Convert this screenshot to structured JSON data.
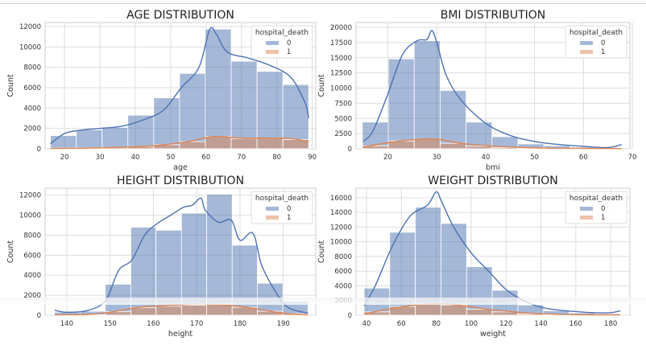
{
  "colors": {
    "survived": "#4c72b0",
    "died": "#dd8452",
    "grid": "#dddddd"
  },
  "chart_data": [
    {
      "type": "bar",
      "title": "AGE DISTRIBUTION",
      "xlabel": "age",
      "ylabel": "Count",
      "xlim": [
        14.5,
        91
      ],
      "ylim": [
        0,
        12400
      ],
      "xticks": [
        20,
        30,
        40,
        50,
        60,
        70,
        80,
        90
      ],
      "yticks": [
        0,
        2000,
        4000,
        6000,
        8000,
        10000,
        12000
      ],
      "legend_title": "hospital_death",
      "legend": [
        "0",
        "1"
      ],
      "bin_edges": [
        16,
        23.3,
        30.6,
        37.9,
        45.2,
        52.5,
        59.8,
        67.1,
        74.4,
        81.7,
        89
      ],
      "series": [
        {
          "name": "0",
          "values": [
            1300,
            1850,
            2100,
            3300,
            5000,
            7400,
            11750,
            8600,
            7600,
            6300
          ],
          "kde": [
            [
              16,
              500
            ],
            [
              20,
              1500
            ],
            [
              24,
              1800
            ],
            [
              30,
              2000
            ],
            [
              36,
              2200
            ],
            [
              42,
              2800
            ],
            [
              48,
              3800
            ],
            [
              53,
              6000
            ],
            [
              58,
              8000
            ],
            [
              61,
              11700
            ],
            [
              63,
              11200
            ],
            [
              66,
              9500
            ],
            [
              72,
              8900
            ],
            [
              78,
              8200
            ],
            [
              84,
              7000
            ],
            [
              88,
              4500
            ],
            [
              89,
              3000
            ]
          ]
        },
        {
          "name": "1",
          "values": [
            80,
            100,
            130,
            220,
            400,
            700,
            1200,
            1000,
            1050,
            900
          ],
          "kde": [
            [
              16,
              30
            ],
            [
              30,
              90
            ],
            [
              45,
              300
            ],
            [
              55,
              700
            ],
            [
              62,
              1200
            ],
            [
              70,
              1050
            ],
            [
              78,
              1050
            ],
            [
              84,
              1000
            ],
            [
              89,
              700
            ]
          ]
        }
      ]
    },
    {
      "type": "bar",
      "title": "BMI DISTRIBUTION",
      "xlabel": "bmi",
      "ylabel": "Count",
      "xlim": [
        13.5,
        69.5
      ],
      "ylim": [
        0,
        20800
      ],
      "xticks": [
        20,
        30,
        40,
        50,
        60,
        70
      ],
      "yticks": [
        0,
        2500,
        5000,
        7500,
        10000,
        12500,
        15000,
        17500,
        20000
      ],
      "legend_title": "hospital_death",
      "legend": [
        "0",
        "1"
      ],
      "bin_edges": [
        14.8,
        20.1,
        25.4,
        30.7,
        36.0,
        41.3,
        46.6,
        51.9,
        57.2,
        62.5,
        67.8
      ],
      "series": [
        {
          "name": "0",
          "values": [
            4400,
            14800,
            17800,
            9600,
            4400,
            2000,
            800,
            500,
            250,
            150
          ],
          "kde": [
            [
              15,
              1200
            ],
            [
              17,
              3000
            ],
            [
              20,
              9000
            ],
            [
              23,
              15500
            ],
            [
              26,
              17800
            ],
            [
              28,
              18000
            ],
            [
              29,
              19500
            ],
            [
              30,
              17500
            ],
            [
              32,
              12000
            ],
            [
              35,
              8000
            ],
            [
              40,
              4200
            ],
            [
              45,
              2200
            ],
            [
              50,
              1200
            ],
            [
              55,
              700
            ],
            [
              60,
              400
            ],
            [
              64,
              200
            ],
            [
              66,
              300
            ],
            [
              67.8,
              700
            ]
          ]
        },
        {
          "name": "1",
          "values": [
            500,
            1300,
            1600,
            900,
            420,
            200,
            90,
            50,
            30,
            20
          ],
          "kde": [
            [
              15,
              300
            ],
            [
              20,
              1000
            ],
            [
              25,
              1500
            ],
            [
              30,
              1600
            ],
            [
              35,
              900
            ],
            [
              42,
              420
            ],
            [
              50,
              150
            ],
            [
              60,
              60
            ],
            [
              67.8,
              40
            ]
          ]
        }
      ]
    },
    {
      "type": "bar",
      "title": "HEIGHT DISTRIBUTION",
      "xlabel": "height",
      "ylabel": "Count",
      "xlim": [
        135,
        197.5
      ],
      "ylim": [
        0,
        12700
      ],
      "xticks": [
        140,
        150,
        160,
        170,
        180,
        190
      ],
      "yticks": [
        0,
        2000,
        4000,
        6000,
        8000,
        10000,
        12000
      ],
      "legend_title": "hospital_death",
      "legend": [
        "0",
        "1"
      ],
      "bin_edges": [
        137.2,
        143.1,
        148.9,
        154.8,
        160.6,
        166.5,
        172.3,
        178.2,
        184.0,
        189.9,
        195.7
      ],
      "series": [
        {
          "name": "0",
          "values": [
            300,
            400,
            3100,
            8800,
            8500,
            10200,
            12100,
            7000,
            3200,
            1400
          ],
          "kde": [
            [
              137.2,
              500
            ],
            [
              140,
              300
            ],
            [
              145,
              500
            ],
            [
              149,
              1500
            ],
            [
              152,
              4500
            ],
            [
              155,
              5500
            ],
            [
              158,
              8000
            ],
            [
              161,
              9200
            ],
            [
              164,
              10000
            ],
            [
              167,
              10800
            ],
            [
              169,
              11000
            ],
            [
              171,
              11700
            ],
            [
              172,
              10500
            ],
            [
              175,
              9300
            ],
            [
              178,
              9500
            ],
            [
              180,
              7500
            ],
            [
              183,
              8200
            ],
            [
              185,
              5000
            ],
            [
              188,
              2500
            ],
            [
              191,
              800
            ],
            [
              195.7,
              200
            ]
          ]
        },
        {
          "name": "1",
          "values": [
            30,
            50,
            350,
            750,
            900,
            1000,
            1100,
            800,
            400,
            150
          ],
          "kde": [
            [
              137.2,
              40
            ],
            [
              145,
              80
            ],
            [
              150,
              300
            ],
            [
              157,
              800
            ],
            [
              165,
              1000
            ],
            [
              170,
              1100
            ],
            [
              177,
              1000
            ],
            [
              183,
              700
            ],
            [
              190,
              200
            ],
            [
              195.7,
              40
            ]
          ]
        }
      ]
    },
    {
      "type": "bar",
      "title": "WEIGHT DISTRIBUTION",
      "xlabel": "weight",
      "ylabel": "Count",
      "xlim": [
        34,
        191
      ],
      "ylim": [
        0,
        17300
      ],
      "xticks": [
        40,
        60,
        80,
        100,
        120,
        140,
        160,
        180
      ],
      "yticks": [
        0,
        2000,
        4000,
        6000,
        8000,
        10000,
        12000,
        14000,
        16000
      ],
      "legend_title": "hospital_death",
      "legend": [
        "0",
        "1"
      ],
      "bin_edges": [
        38.6,
        53.3,
        68.0,
        82.7,
        97.4,
        112.1,
        126.8,
        141.5,
        156.2,
        170.9,
        185.6
      ],
      "series": [
        {
          "name": "0",
          "values": [
            3700,
            11300,
            14700,
            12500,
            6600,
            3400,
            1400,
            600,
            300,
            200
          ],
          "kde": [
            [
              38.6,
              1300
            ],
            [
              45,
              4000
            ],
            [
              55,
              9500
            ],
            [
              65,
              13500
            ],
            [
              75,
              15000
            ],
            [
              80,
              16800
            ],
            [
              83,
              15500
            ],
            [
              90,
              12000
            ],
            [
              100,
              8500
            ],
            [
              110,
              6000
            ],
            [
              120,
              3500
            ],
            [
              130,
              2000
            ],
            [
              140,
              1100
            ],
            [
              150,
              700
            ],
            [
              160,
              500
            ],
            [
              170,
              350
            ],
            [
              180,
              350
            ],
            [
              185.6,
              600
            ]
          ]
        },
        {
          "name": "1",
          "values": [
            450,
            1200,
            1550,
            1400,
            800,
            450,
            180,
            90,
            40,
            30
          ],
          "kde": [
            [
              38.6,
              200
            ],
            [
              50,
              700
            ],
            [
              65,
              1300
            ],
            [
              80,
              1600
            ],
            [
              95,
              1300
            ],
            [
              110,
              800
            ],
            [
              125,
              450
            ],
            [
              140,
              200
            ],
            [
              160,
              80
            ],
            [
              185.6,
              40
            ]
          ]
        }
      ]
    }
  ]
}
